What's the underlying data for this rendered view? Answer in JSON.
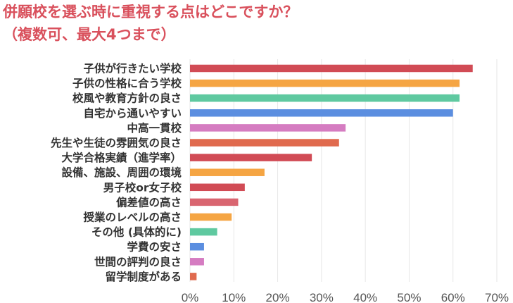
{
  "chart_data": {
    "type": "bar",
    "orientation": "horizontal",
    "title_lines": [
      "併願校を選ぶ時に重視する点はどこですか？",
      "（複数可、最大4つまで）"
    ],
    "categories": [
      "子供が行きたい学校",
      "子供の性格に合う学校",
      "校風や教育方針の良さ",
      "自宅から通いやすい",
      "中高一貫校",
      "先生や生徒の雰囲気の良さ",
      "大学合格実績（進学率）",
      "設備、施設、周囲の環境",
      "男子校or女子校",
      "偏差値の高さ",
      "授業のレベルの高さ",
      "その他 (具体的に)",
      "学費の安さ",
      "世間の評判の良さ",
      "留学制度がある"
    ],
    "values": [
      64.5,
      61.5,
      61.5,
      60,
      35.5,
      34,
      27.8,
      17,
      12.5,
      11,
      9.5,
      6.2,
      3.2,
      3.2,
      1.5
    ],
    "colors": [
      "#d14b55",
      "#f5a543",
      "#5fc9a0",
      "#5b8ee0",
      "#d57cc1",
      "#e06a4e",
      "#d14b55",
      "#f5a543",
      "#d14b55",
      "#d96570",
      "#f5a543",
      "#5fc9a0",
      "#5b8ee0",
      "#d57cc1",
      "#e06a4e"
    ],
    "xlim": [
      0,
      70
    ],
    "xticks": [
      "0%",
      "10%",
      "20%",
      "30%",
      "40%",
      "50%",
      "60%",
      "70%"
    ],
    "grid": true
  }
}
